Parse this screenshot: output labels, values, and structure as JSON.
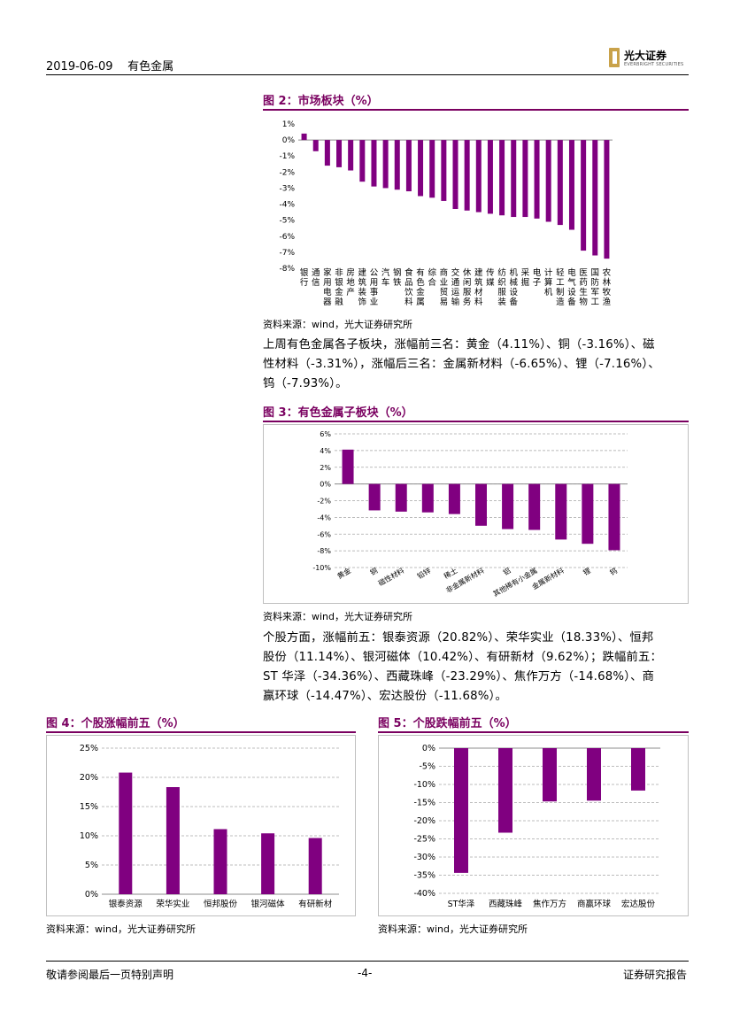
{
  "header": {
    "date": "2019-06-09",
    "sector": "有色金属",
    "logo_cn": "光大证券",
    "logo_en": "EVERBRIGHT SECURITIES"
  },
  "figures": {
    "fig2": {
      "title": "图 2：市场板块（%）",
      "source": "资料来源：wind，光大证券研究所"
    },
    "fig3": {
      "title": "图 3：有色金属子板块（%）",
      "source": "资料来源：wind，光大证券研究所"
    },
    "fig4": {
      "title": "图 4：个股涨幅前五（%）",
      "source": "资料来源：wind，光大证券研究所"
    },
    "fig5": {
      "title": "图 5：个股跌幅前五（%）",
      "source": "资料来源：wind，光大证券研究所"
    }
  },
  "paragraphs": {
    "p1": [
      "上周有色金属各子板块，涨幅前三名：黄金（4.11%）、铜（-3.16%）、磁",
      "性材料（-3.31%），涨幅后三名：金属新材料（-6.65%）、锂（-7.16%）、",
      "钨（-7.93%）。"
    ],
    "p2": [
      "个股方面，涨幅前五：银泰资源（20.82%）、荣华实业（18.33%）、恒邦",
      "股份（11.14%）、银河磁体（10.42%）、有研新材（9.62%）；跌幅前五：",
      "ST 华泽（-34.36%）、西藏珠峰（-23.29%）、焦作万方（-14.68%）、商",
      "赢环球（-14.47%）、宏达股份（-11.68%）。"
    ]
  },
  "footer": {
    "disclaimer": "敬请参阅最后一页特别声明",
    "page": "-4-",
    "doc_type": "证券研究报告"
  },
  "colors": {
    "accent": "#7a0060",
    "bar": "#800080",
    "grid": "#a6a6a6",
    "logo": "#c9a24a"
  },
  "chart_data": [
    {
      "id": "fig2",
      "type": "bar",
      "categories": [
        "银行",
        "通信",
        "家用电器",
        "非银金融",
        "房地产",
        "建筑装饰",
        "公用事业",
        "汽车",
        "钢铁",
        "食品饮料",
        "有色金属",
        "综合",
        "商业贸易",
        "交通运输",
        "休闲服务",
        "建筑材料",
        "传媒",
        "纺织服装",
        "机械设备",
        "采掘",
        "电子",
        "计算机",
        "轻工制造",
        "电气设备",
        "医药生物",
        "国防军工",
        "农林牧渔"
      ],
      "values": [
        0.4,
        -0.7,
        -1.6,
        -1.7,
        -1.9,
        -2.6,
        -2.9,
        -3.0,
        -3.1,
        -3.2,
        -3.5,
        -3.6,
        -3.8,
        -4.3,
        -4.4,
        -4.5,
        -4.6,
        -4.7,
        -4.8,
        -4.8,
        -4.9,
        -5.1,
        -5.3,
        -5.6,
        -6.9,
        -7.2,
        -7.4
      ],
      "yticks": [
        "1%",
        "0%",
        "-1%",
        "-2%",
        "-3%",
        "-4%",
        "-5%",
        "-6%",
        "-7%",
        "-8%"
      ],
      "ylim": [
        -8,
        1
      ],
      "grid": false
    },
    {
      "id": "fig3",
      "type": "bar",
      "categories": [
        "黄金",
        "铜",
        "磁性材料",
        "铅锌",
        "稀土",
        "非金属新材料",
        "铝",
        "其他稀有小金属",
        "金属新材料",
        "锂",
        "钨"
      ],
      "values": [
        4.11,
        -3.16,
        -3.31,
        -3.4,
        -3.6,
        -5.0,
        -5.4,
        -5.5,
        -6.65,
        -7.16,
        -7.93
      ],
      "yticks": [
        "6%",
        "4%",
        "2%",
        "0%",
        "-2%",
        "-4%",
        "-6%",
        "-8%",
        "-10%"
      ],
      "ylim": [
        -10,
        6
      ],
      "grid": true
    },
    {
      "id": "fig4",
      "type": "bar",
      "categories": [
        "银泰资源",
        "荣华实业",
        "恒邦股份",
        "银河磁体",
        "有研新材"
      ],
      "values": [
        20.82,
        18.33,
        11.14,
        10.42,
        9.62
      ],
      "yticks": [
        "25%",
        "20%",
        "15%",
        "10%",
        "5%",
        "0%"
      ],
      "ylim": [
        0,
        25
      ],
      "grid": true
    },
    {
      "id": "fig5",
      "type": "bar",
      "categories": [
        "ST华泽",
        "西藏珠峰",
        "焦作万方",
        "商赢环球",
        "宏达股份"
      ],
      "values": [
        -34.36,
        -23.29,
        -14.68,
        -14.47,
        -11.68
      ],
      "yticks": [
        "0%",
        "-5%",
        "-10%",
        "-15%",
        "-20%",
        "-25%",
        "-30%",
        "-35%",
        "-40%"
      ],
      "ylim": [
        -40,
        0
      ],
      "grid": true
    }
  ]
}
